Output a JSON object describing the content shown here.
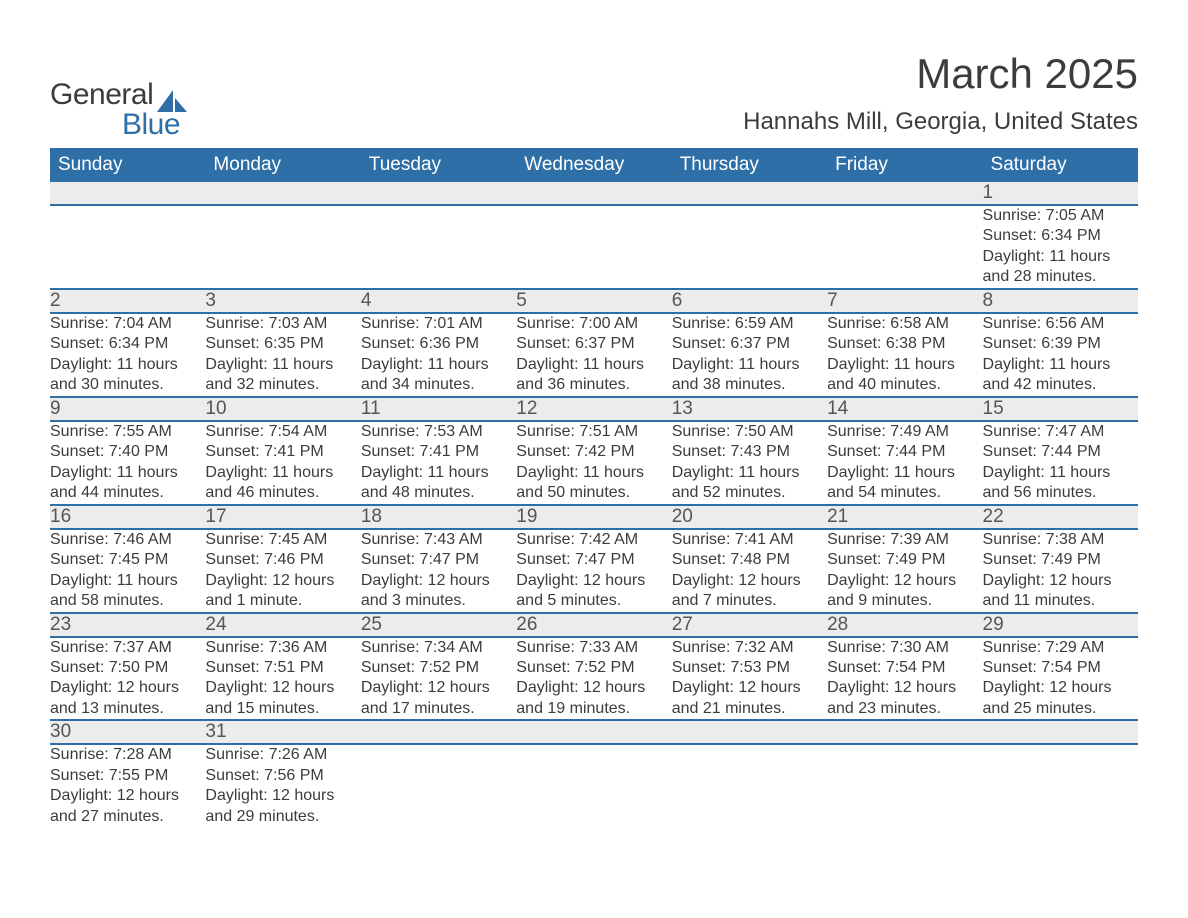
{
  "brand": {
    "word1": "General",
    "word2": "Blue",
    "icon_color": "#2f6fa7",
    "text_color": "#3c3c3c"
  },
  "title": "March 2025",
  "location": "Hannahs Mill, Georgia, United States",
  "colors": {
    "header_bg": "#2f6fa7",
    "header_text": "#ffffff",
    "daynum_bg": "#ececec",
    "border": "#2f6fa7",
    "body_text": "#3c3c3c"
  },
  "day_headers": [
    "Sunday",
    "Monday",
    "Tuesday",
    "Wednesday",
    "Thursday",
    "Friday",
    "Saturday"
  ],
  "weeks": [
    [
      null,
      null,
      null,
      null,
      null,
      null,
      {
        "n": "1",
        "sunrise": "7:05 AM",
        "sunset": "6:34 PM",
        "dl1": "Daylight: 11 hours",
        "dl2": "and 28 minutes."
      }
    ],
    [
      {
        "n": "2",
        "sunrise": "7:04 AM",
        "sunset": "6:34 PM",
        "dl1": "Daylight: 11 hours",
        "dl2": "and 30 minutes."
      },
      {
        "n": "3",
        "sunrise": "7:03 AM",
        "sunset": "6:35 PM",
        "dl1": "Daylight: 11 hours",
        "dl2": "and 32 minutes."
      },
      {
        "n": "4",
        "sunrise": "7:01 AM",
        "sunset": "6:36 PM",
        "dl1": "Daylight: 11 hours",
        "dl2": "and 34 minutes."
      },
      {
        "n": "5",
        "sunrise": "7:00 AM",
        "sunset": "6:37 PM",
        "dl1": "Daylight: 11 hours",
        "dl2": "and 36 minutes."
      },
      {
        "n": "6",
        "sunrise": "6:59 AM",
        "sunset": "6:37 PM",
        "dl1": "Daylight: 11 hours",
        "dl2": "and 38 minutes."
      },
      {
        "n": "7",
        "sunrise": "6:58 AM",
        "sunset": "6:38 PM",
        "dl1": "Daylight: 11 hours",
        "dl2": "and 40 minutes."
      },
      {
        "n": "8",
        "sunrise": "6:56 AM",
        "sunset": "6:39 PM",
        "dl1": "Daylight: 11 hours",
        "dl2": "and 42 minutes."
      }
    ],
    [
      {
        "n": "9",
        "sunrise": "7:55 AM",
        "sunset": "7:40 PM",
        "dl1": "Daylight: 11 hours",
        "dl2": "and 44 minutes."
      },
      {
        "n": "10",
        "sunrise": "7:54 AM",
        "sunset": "7:41 PM",
        "dl1": "Daylight: 11 hours",
        "dl2": "and 46 minutes."
      },
      {
        "n": "11",
        "sunrise": "7:53 AM",
        "sunset": "7:41 PM",
        "dl1": "Daylight: 11 hours",
        "dl2": "and 48 minutes."
      },
      {
        "n": "12",
        "sunrise": "7:51 AM",
        "sunset": "7:42 PM",
        "dl1": "Daylight: 11 hours",
        "dl2": "and 50 minutes."
      },
      {
        "n": "13",
        "sunrise": "7:50 AM",
        "sunset": "7:43 PM",
        "dl1": "Daylight: 11 hours",
        "dl2": "and 52 minutes."
      },
      {
        "n": "14",
        "sunrise": "7:49 AM",
        "sunset": "7:44 PM",
        "dl1": "Daylight: 11 hours",
        "dl2": "and 54 minutes."
      },
      {
        "n": "15",
        "sunrise": "7:47 AM",
        "sunset": "7:44 PM",
        "dl1": "Daylight: 11 hours",
        "dl2": "and 56 minutes."
      }
    ],
    [
      {
        "n": "16",
        "sunrise": "7:46 AM",
        "sunset": "7:45 PM",
        "dl1": "Daylight: 11 hours",
        "dl2": "and 58 minutes."
      },
      {
        "n": "17",
        "sunrise": "7:45 AM",
        "sunset": "7:46 PM",
        "dl1": "Daylight: 12 hours",
        "dl2": "and 1 minute."
      },
      {
        "n": "18",
        "sunrise": "7:43 AM",
        "sunset": "7:47 PM",
        "dl1": "Daylight: 12 hours",
        "dl2": "and 3 minutes."
      },
      {
        "n": "19",
        "sunrise": "7:42 AM",
        "sunset": "7:47 PM",
        "dl1": "Daylight: 12 hours",
        "dl2": "and 5 minutes."
      },
      {
        "n": "20",
        "sunrise": "7:41 AM",
        "sunset": "7:48 PM",
        "dl1": "Daylight: 12 hours",
        "dl2": "and 7 minutes."
      },
      {
        "n": "21",
        "sunrise": "7:39 AM",
        "sunset": "7:49 PM",
        "dl1": "Daylight: 12 hours",
        "dl2": "and 9 minutes."
      },
      {
        "n": "22",
        "sunrise": "7:38 AM",
        "sunset": "7:49 PM",
        "dl1": "Daylight: 12 hours",
        "dl2": "and 11 minutes."
      }
    ],
    [
      {
        "n": "23",
        "sunrise": "7:37 AM",
        "sunset": "7:50 PM",
        "dl1": "Daylight: 12 hours",
        "dl2": "and 13 minutes."
      },
      {
        "n": "24",
        "sunrise": "7:36 AM",
        "sunset": "7:51 PM",
        "dl1": "Daylight: 12 hours",
        "dl2": "and 15 minutes."
      },
      {
        "n": "25",
        "sunrise": "7:34 AM",
        "sunset": "7:52 PM",
        "dl1": "Daylight: 12 hours",
        "dl2": "and 17 minutes."
      },
      {
        "n": "26",
        "sunrise": "7:33 AM",
        "sunset": "7:52 PM",
        "dl1": "Daylight: 12 hours",
        "dl2": "and 19 minutes."
      },
      {
        "n": "27",
        "sunrise": "7:32 AM",
        "sunset": "7:53 PM",
        "dl1": "Daylight: 12 hours",
        "dl2": "and 21 minutes."
      },
      {
        "n": "28",
        "sunrise": "7:30 AM",
        "sunset": "7:54 PM",
        "dl1": "Daylight: 12 hours",
        "dl2": "and 23 minutes."
      },
      {
        "n": "29",
        "sunrise": "7:29 AM",
        "sunset": "7:54 PM",
        "dl1": "Daylight: 12 hours",
        "dl2": "and 25 minutes."
      }
    ],
    [
      {
        "n": "30",
        "sunrise": "7:28 AM",
        "sunset": "7:55 PM",
        "dl1": "Daylight: 12 hours",
        "dl2": "and 27 minutes."
      },
      {
        "n": "31",
        "sunrise": "7:26 AM",
        "sunset": "7:56 PM",
        "dl1": "Daylight: 12 hours",
        "dl2": "and 29 minutes."
      },
      null,
      null,
      null,
      null,
      null
    ]
  ],
  "labels": {
    "sunrise_prefix": "Sunrise: ",
    "sunset_prefix": "Sunset: "
  }
}
